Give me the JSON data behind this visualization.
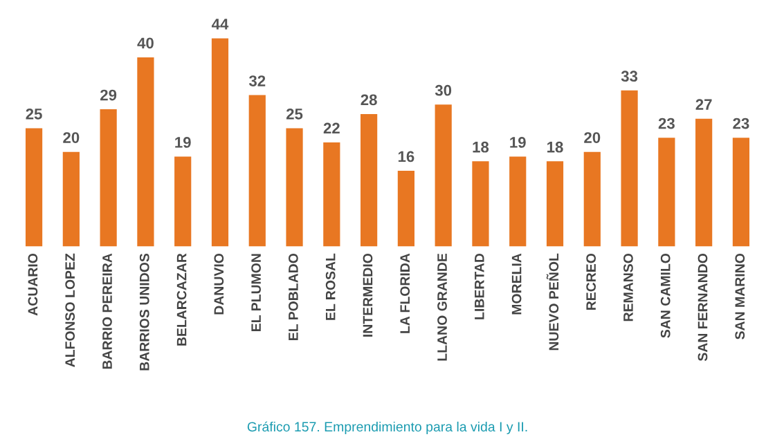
{
  "chart_data": {
    "type": "bar",
    "categories": [
      "ACUARIO",
      "ALFONSO LOPEZ",
      "BARRIO PEREIRA",
      "BARRIOS UNIDOS",
      "BELARCAZAR",
      "DANUVIO",
      "EL PLUMON",
      "EL POBLADO",
      "EL ROSAL",
      "INTERMEDIO",
      "LA FLORIDA",
      "LLANO GRANDE",
      "LIBERTAD",
      "MORELIA",
      "NUEVO PEÑOL",
      "RECREO",
      "REMANSO",
      "SAN CAMILO",
      "SAN FERNANDO",
      "SAN MARINO"
    ],
    "values": [
      25,
      20,
      29,
      40,
      19,
      44,
      32,
      25,
      22,
      28,
      16,
      30,
      18,
      19,
      18,
      20,
      33,
      23,
      27,
      23
    ],
    "color": "#e87722",
    "data_labels": true,
    "grid": false,
    "annotations": [
      "Gráfico 157. Emprendimiento para la vida I y II."
    ]
  }
}
